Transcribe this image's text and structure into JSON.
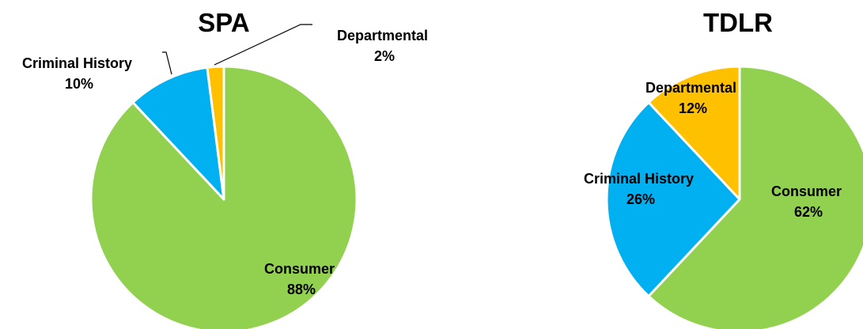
{
  "chart_data": [
    {
      "type": "pie",
      "title": "SPA",
      "slices": [
        {
          "name": "Consumer",
          "value": 88,
          "label": "88%",
          "color": "#92D050"
        },
        {
          "name": "Criminal History",
          "value": 10,
          "label": "10%",
          "color": "#00B0F0"
        },
        {
          "name": "Departmental",
          "value": 2,
          "label": "2%",
          "color": "#FFC000"
        }
      ]
    },
    {
      "type": "pie",
      "title": "TDLR",
      "slices": [
        {
          "name": "Consumer",
          "value": 62,
          "label": "62%",
          "color": "#92D050"
        },
        {
          "name": "Criminal History",
          "value": 26,
          "label": "26%",
          "color": "#00B0F0"
        },
        {
          "name": "Departmental",
          "value": 12,
          "label": "12%",
          "color": "#FFC000"
        }
      ]
    }
  ]
}
